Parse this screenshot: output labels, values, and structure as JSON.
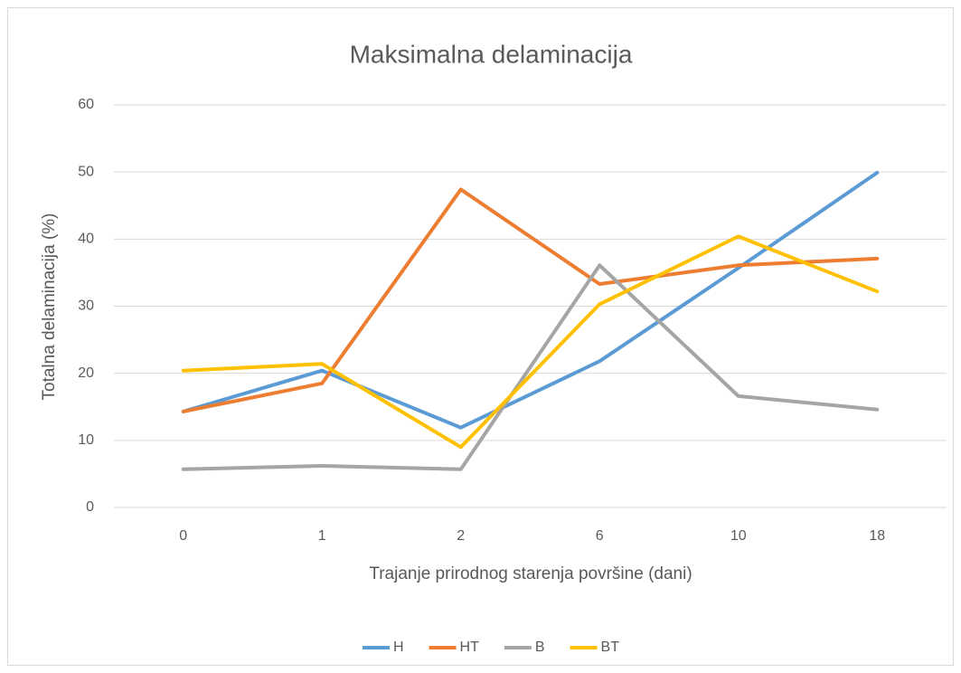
{
  "chart_data": {
    "type": "line",
    "title": "Maksimalna delaminacija",
    "x_label": "Trajanje prirodnog starenja površine (dani)",
    "y_label": "Totalna delaminacija (%)",
    "categories": [
      "0",
      "1",
      "2",
      "6",
      "10",
      "18"
    ],
    "series": [
      {
        "name": "H",
        "color": "#5b9bd5",
        "values": [
          14.3,
          20.4,
          11.9,
          21.8,
          35.7,
          49.9
        ]
      },
      {
        "name": "HT",
        "color": "#ed7d31",
        "values": [
          14.3,
          18.5,
          47.4,
          33.3,
          36.1,
          37.1
        ]
      },
      {
        "name": "B",
        "color": "#a5a5a5",
        "values": [
          5.7,
          6.2,
          5.7,
          36.1,
          16.6,
          14.6
        ]
      },
      {
        "name": "BT",
        "color": "#ffc000",
        "values": [
          20.4,
          21.4,
          9.0,
          30.3,
          40.4,
          32.2
        ]
      }
    ],
    "ylim": [
      0,
      60
    ],
    "yticks": [
      0,
      10,
      20,
      30,
      40,
      50,
      60
    ],
    "grid": true,
    "legend": "bottom"
  }
}
